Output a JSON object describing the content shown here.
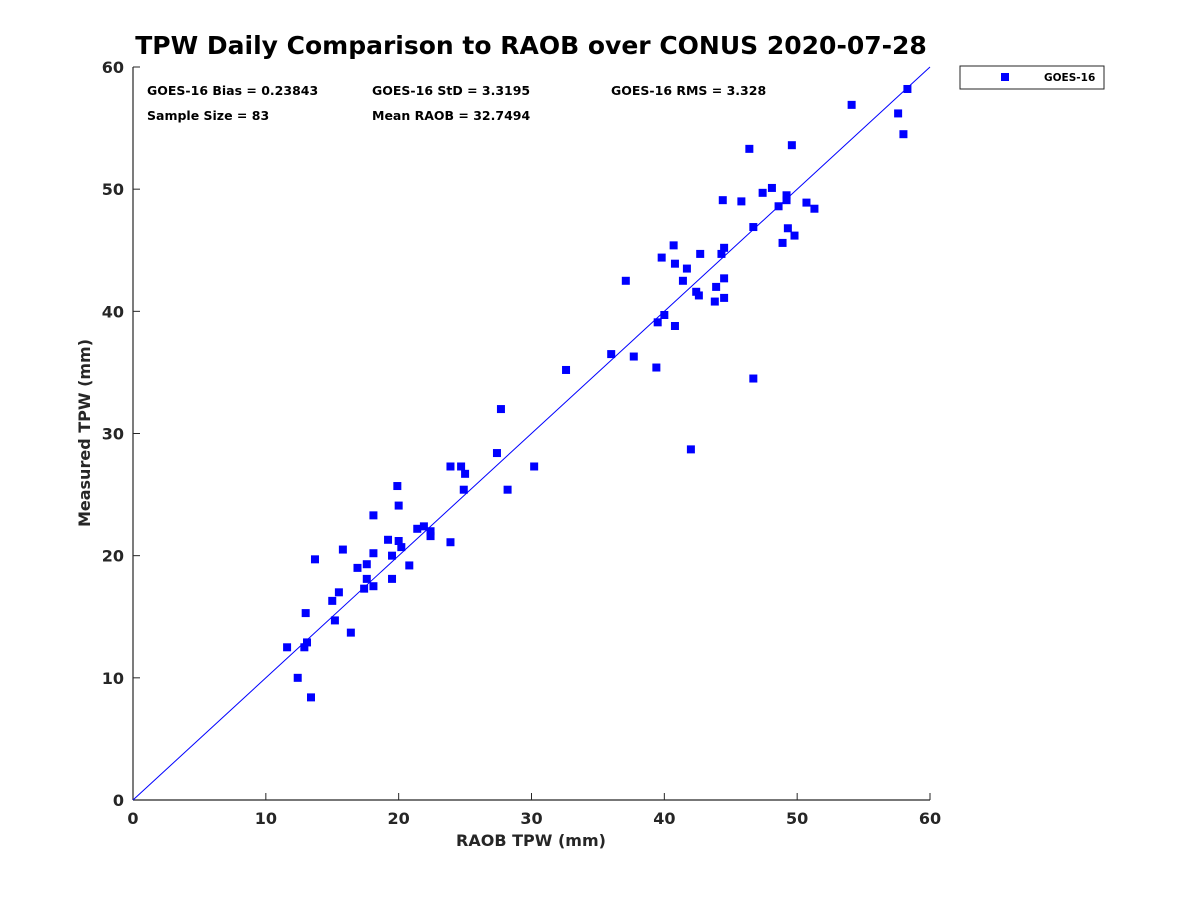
{
  "colors": {
    "series": "#0000ff",
    "axis": "#262626",
    "text": "#000000"
  },
  "chart_data": {
    "type": "scatter",
    "title": "TPW Daily Comparison to RAOB over CONUS 2020-07-28",
    "xlabel": "RAOB TPW (mm)",
    "ylabel": "Measured TPW (mm)",
    "xlim": [
      0,
      60
    ],
    "ylim": [
      0,
      60
    ],
    "xticks": [
      0,
      10,
      20,
      30,
      40,
      50,
      60
    ],
    "yticks": [
      0,
      10,
      20,
      30,
      40,
      50,
      60
    ],
    "grid": false,
    "legend_position": "outside-top-right",
    "reference_line": {
      "name": "1:1 line",
      "from": [
        0,
        0
      ],
      "to": [
        60,
        60
      ]
    },
    "stats": {
      "bias": "GOES-16 Bias = 0.23843",
      "std": "GOES-16 StD = 3.3195",
      "rms": "GOES-16 RMS = 3.328",
      "sample_size": "Sample Size = 83",
      "mean_raob": "Mean RAOB = 32.7494"
    },
    "series": [
      {
        "name": "GOES-16",
        "marker": "square",
        "points": [
          [
            11.6,
            12.5
          ],
          [
            12.4,
            10.0
          ],
          [
            12.9,
            12.5
          ],
          [
            13.0,
            15.3
          ],
          [
            13.1,
            12.9
          ],
          [
            13.4,
            8.4
          ],
          [
            13.7,
            19.7
          ],
          [
            15.0,
            16.3
          ],
          [
            15.2,
            14.7
          ],
          [
            15.5,
            17.0
          ],
          [
            15.8,
            20.5
          ],
          [
            16.4,
            13.7
          ],
          [
            16.9,
            19.0
          ],
          [
            17.4,
            17.3
          ],
          [
            17.6,
            19.3
          ],
          [
            17.6,
            18.1
          ],
          [
            18.1,
            17.5
          ],
          [
            18.1,
            20.2
          ],
          [
            18.1,
            23.3
          ],
          [
            19.2,
            21.3
          ],
          [
            19.5,
            18.1
          ],
          [
            19.5,
            20.0
          ],
          [
            19.9,
            25.7
          ],
          [
            20.0,
            24.1
          ],
          [
            20.0,
            21.2
          ],
          [
            20.2,
            20.7
          ],
          [
            20.8,
            19.2
          ],
          [
            21.4,
            22.2
          ],
          [
            21.9,
            22.4
          ],
          [
            22.4,
            21.6
          ],
          [
            22.4,
            22.0
          ],
          [
            23.9,
            27.3
          ],
          [
            23.9,
            21.1
          ],
          [
            24.7,
            27.3
          ],
          [
            24.9,
            25.4
          ],
          [
            25.0,
            26.7
          ],
          [
            27.4,
            28.4
          ],
          [
            27.7,
            32.0
          ],
          [
            28.2,
            25.4
          ],
          [
            30.2,
            27.3
          ],
          [
            32.6,
            35.2
          ],
          [
            36.0,
            36.5
          ],
          [
            37.1,
            42.5
          ],
          [
            37.7,
            36.3
          ],
          [
            39.4,
            35.4
          ],
          [
            39.5,
            39.1
          ],
          [
            39.8,
            44.4
          ],
          [
            40.0,
            39.7
          ],
          [
            40.7,
            45.4
          ],
          [
            40.8,
            43.9
          ],
          [
            40.8,
            38.8
          ],
          [
            41.4,
            42.5
          ],
          [
            41.7,
            43.5
          ],
          [
            42.0,
            28.7
          ],
          [
            42.4,
            41.6
          ],
          [
            42.6,
            41.3
          ],
          [
            42.7,
            44.7
          ],
          [
            43.8,
            40.8
          ],
          [
            43.9,
            42.0
          ],
          [
            44.3,
            44.7
          ],
          [
            44.4,
            49.1
          ],
          [
            44.5,
            45.2
          ],
          [
            44.5,
            42.7
          ],
          [
            44.5,
            41.1
          ],
          [
            45.8,
            49.0
          ],
          [
            46.4,
            53.3
          ],
          [
            46.7,
            46.9
          ],
          [
            46.7,
            34.5
          ],
          [
            47.4,
            49.7
          ],
          [
            48.1,
            50.1
          ],
          [
            48.6,
            48.6
          ],
          [
            48.9,
            45.6
          ],
          [
            49.2,
            49.5
          ],
          [
            49.2,
            49.1
          ],
          [
            49.3,
            46.8
          ],
          [
            49.6,
            53.6
          ],
          [
            49.8,
            46.2
          ],
          [
            50.7,
            48.9
          ],
          [
            51.3,
            48.4
          ],
          [
            54.1,
            56.9
          ],
          [
            57.6,
            56.2
          ],
          [
            58.0,
            54.5
          ],
          [
            58.3,
            58.2
          ]
        ]
      }
    ]
  }
}
